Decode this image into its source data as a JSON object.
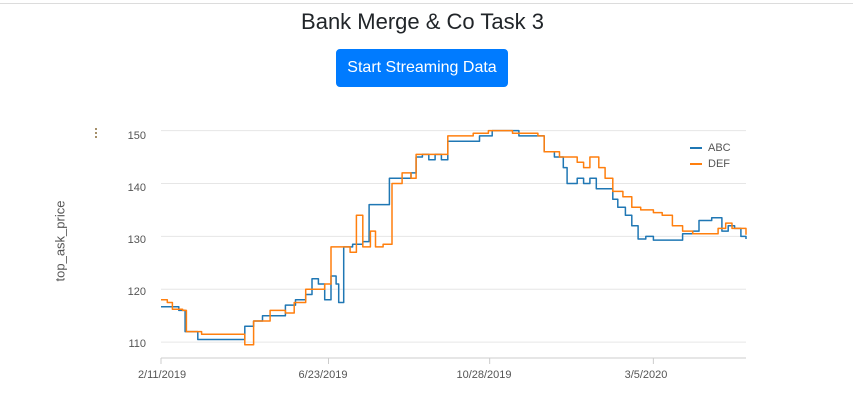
{
  "page": {
    "title": "Bank Merge & Co Task 3",
    "stream_button_label": "Start Streaming Data",
    "menu_icon": "kebab-menu-icon"
  },
  "chart_data": {
    "type": "line",
    "title": "",
    "xlabel": "",
    "ylabel": "top_ask_price",
    "x_ticks": [
      "2/11/2019",
      "6/23/2019",
      "10/28/2019",
      "3/5/2020"
    ],
    "y_ticks": [
      "110",
      "120",
      "130",
      "140",
      "150"
    ],
    "ylim": [
      107,
      152
    ],
    "grid": true,
    "legend_position": "top-right",
    "series": [
      {
        "name": "ABC",
        "color": "#1f77b4",
        "points": [
          [
            "2019-02-11",
            116.7
          ],
          [
            "2019-02-20",
            116.7
          ],
          [
            "2019-02-25",
            116.0
          ],
          [
            "2019-03-02",
            112.0
          ],
          [
            "2019-03-12",
            110.5
          ],
          [
            "2019-03-25",
            110.5
          ],
          [
            "2019-04-05",
            110.5
          ],
          [
            "2019-04-18",
            113.0
          ],
          [
            "2019-04-25",
            114.0
          ],
          [
            "2019-05-02",
            115.0
          ],
          [
            "2019-05-10",
            115.0
          ],
          [
            "2019-05-20",
            117.0
          ],
          [
            "2019-05-28",
            118.0
          ],
          [
            "2019-06-05",
            119.0
          ],
          [
            "2019-06-10",
            122.0
          ],
          [
            "2019-06-15",
            121.0
          ],
          [
            "2019-06-20",
            118.0
          ],
          [
            "2019-06-25",
            122.5
          ],
          [
            "2019-06-29",
            121.0
          ],
          [
            "2019-07-01",
            117.5
          ],
          [
            "2019-07-05",
            128.0
          ],
          [
            "2019-07-12",
            128.5
          ],
          [
            "2019-07-20",
            129.0
          ],
          [
            "2019-07-25",
            136.0
          ],
          [
            "2019-08-05",
            136.0
          ],
          [
            "2019-08-10",
            141.0
          ],
          [
            "2019-08-20",
            141.0
          ],
          [
            "2019-08-27",
            142.0
          ],
          [
            "2019-08-31",
            145.0
          ],
          [
            "2019-09-05",
            145.5
          ],
          [
            "2019-09-10",
            144.5
          ],
          [
            "2019-09-15",
            145.5
          ],
          [
            "2019-09-20",
            144.5
          ],
          [
            "2019-09-25",
            148.0
          ],
          [
            "2019-10-15",
            148.0
          ],
          [
            "2019-10-20",
            149.0
          ],
          [
            "2019-10-30",
            150.0
          ],
          [
            "2019-11-10",
            150.0
          ],
          [
            "2019-11-20",
            149.0
          ],
          [
            "2019-12-05",
            149.0
          ],
          [
            "2019-12-10",
            146.0
          ],
          [
            "2019-12-18",
            145.0
          ],
          [
            "2019-12-25",
            143.0
          ],
          [
            "2019-12-28",
            140.0
          ],
          [
            "2020-01-05",
            141.0
          ],
          [
            "2020-01-10",
            140.0
          ],
          [
            "2020-01-15",
            141.0
          ],
          [
            "2020-01-20",
            139.0
          ],
          [
            "2020-01-28",
            139.0
          ],
          [
            "2020-02-02",
            137.0
          ],
          [
            "2020-02-06",
            135.5
          ],
          [
            "2020-02-12",
            134.0
          ],
          [
            "2020-02-17",
            132.0
          ],
          [
            "2020-02-22",
            129.5
          ],
          [
            "2020-02-28",
            130.0
          ],
          [
            "2020-03-05",
            129.3
          ],
          [
            "2020-03-20",
            129.3
          ],
          [
            "2020-03-28",
            130.5
          ],
          [
            "2020-04-05",
            131.0
          ],
          [
            "2020-04-10",
            133.0
          ],
          [
            "2020-04-20",
            133.5
          ],
          [
            "2020-04-28",
            131.0
          ],
          [
            "2020-05-03",
            132.0
          ],
          [
            "2020-05-08",
            131.5
          ],
          [
            "2020-05-13",
            130.0
          ],
          [
            "2020-05-17",
            129.5
          ]
        ]
      },
      {
        "name": "DEF",
        "color": "#ff7f0e",
        "points": [
          [
            "2019-02-11",
            118.0
          ],
          [
            "2019-02-16",
            117.5
          ],
          [
            "2019-02-20",
            116.2
          ],
          [
            "2019-02-28",
            116.0
          ],
          [
            "2019-03-03",
            112.0
          ],
          [
            "2019-03-15",
            111.5
          ],
          [
            "2019-03-30",
            111.5
          ],
          [
            "2019-04-12",
            111.5
          ],
          [
            "2019-04-18",
            109.5
          ],
          [
            "2019-04-25",
            114.0
          ],
          [
            "2019-05-08",
            116.0
          ],
          [
            "2019-05-20",
            115.5
          ],
          [
            "2019-05-27",
            117.5
          ],
          [
            "2019-06-05",
            120.0
          ],
          [
            "2019-06-20",
            121.0
          ],
          [
            "2019-06-25",
            128.0
          ],
          [
            "2019-07-05",
            128.0
          ],
          [
            "2019-07-10",
            127.0
          ],
          [
            "2019-07-15",
            134.0
          ],
          [
            "2019-07-20",
            128.0
          ],
          [
            "2019-07-26",
            131.0
          ],
          [
            "2019-07-30",
            128.0
          ],
          [
            "2019-08-05",
            128.5
          ],
          [
            "2019-08-12",
            140.0
          ],
          [
            "2019-08-20",
            142.0
          ],
          [
            "2019-08-27",
            141.0
          ],
          [
            "2019-08-31",
            145.5
          ],
          [
            "2019-09-20",
            145.5
          ],
          [
            "2019-09-25",
            149.0
          ],
          [
            "2019-10-15",
            149.5
          ],
          [
            "2019-10-27",
            150.0
          ],
          [
            "2019-11-15",
            149.5
          ],
          [
            "2019-12-05",
            149.0
          ],
          [
            "2019-12-10",
            146.0
          ],
          [
            "2019-12-22",
            145.0
          ],
          [
            "2020-01-05",
            144.0
          ],
          [
            "2020-01-10",
            143.0
          ],
          [
            "2020-01-15",
            145.0
          ],
          [
            "2020-01-22",
            143.0
          ],
          [
            "2020-01-27",
            141.0
          ],
          [
            "2020-02-02",
            138.5
          ],
          [
            "2020-02-10",
            137.5
          ],
          [
            "2020-02-17",
            135.5
          ],
          [
            "2020-02-24",
            135.0
          ],
          [
            "2020-03-05",
            134.5
          ],
          [
            "2020-03-12",
            134.0
          ],
          [
            "2020-03-20",
            132.0
          ],
          [
            "2020-03-28",
            131.0
          ],
          [
            "2020-04-05",
            130.5
          ],
          [
            "2020-04-17",
            130.5
          ],
          [
            "2020-04-25",
            131.5
          ],
          [
            "2020-05-01",
            132.5
          ],
          [
            "2020-05-06",
            131.5
          ],
          [
            "2020-05-11",
            131.5
          ],
          [
            "2020-05-17",
            130.3
          ]
        ]
      }
    ]
  }
}
